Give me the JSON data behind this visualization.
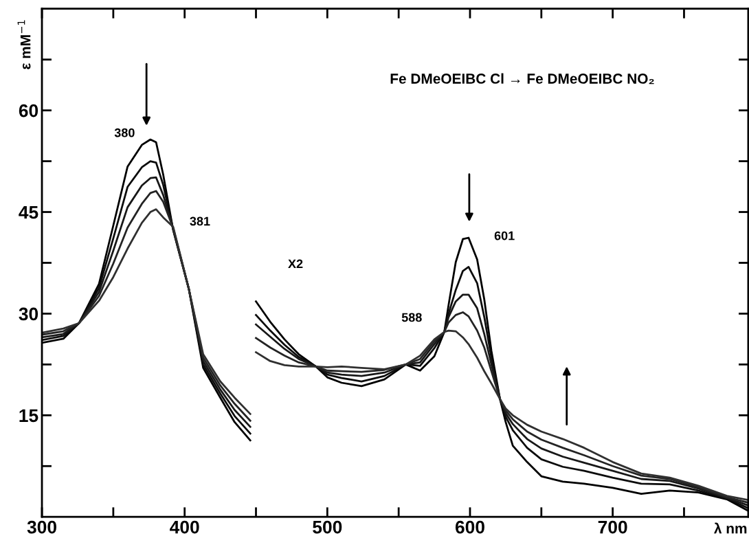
{
  "chart_data": {
    "type": "line",
    "title": "Fe DMeOEIBC Cl → Fe DMeOEIBC NO₂",
    "xlabel": "λ nm",
    "ylabel": "ε mM$^{−1}$",
    "x": [
      300,
      315,
      326,
      340,
      350,
      360,
      370,
      376,
      380,
      385,
      392,
      403,
      413,
      425,
      435,
      446,
      448,
      450,
      460,
      470,
      480,
      492,
      500,
      510,
      524,
      540,
      555,
      565,
      575,
      582,
      585,
      590,
      595,
      599,
      605,
      610,
      615,
      621,
      625,
      630,
      640,
      650,
      665,
      680,
      700,
      720,
      740,
      760,
      780,
      795
    ],
    "series": [
      {
        "color": "#000000",
        "values": [
          25.7,
          26.3,
          28.6,
          34.4,
          43,
          51.7,
          54.9,
          55.7,
          55.3,
          50.5,
          42.3,
          33.6,
          22,
          17.6,
          14,
          11.3,
          null,
          31.8,
          28.8,
          26.2,
          24,
          22.2,
          20.6,
          19.8,
          19.3,
          20.3,
          22.5,
          21.6,
          23.7,
          27.3,
          31.3,
          37.6,
          41,
          41.2,
          38,
          32.1,
          24.5,
          17.4,
          14,
          10.5,
          8.1,
          6,
          5.2,
          4.9,
          4.3,
          3.4,
          3.9,
          3.6,
          2.6,
          0.9
        ]
      },
      {
        "color": "#0c0c0c",
        "values": [
          26.1,
          26.7,
          28.6,
          33.8,
          41.1,
          48.7,
          51.6,
          52.5,
          52.3,
          49,
          42.4,
          33.6,
          22.5,
          18.2,
          14.9,
          12.3,
          null,
          29.8,
          27.5,
          25.4,
          23.6,
          22.2,
          21,
          20.5,
          20,
          20.8,
          22.5,
          22.3,
          24.9,
          27.3,
          30,
          33.5,
          36.3,
          36.9,
          34.5,
          29.5,
          23.5,
          17.4,
          14.8,
          12.8,
          10.2,
          8.5,
          7.4,
          6.8,
          5.8,
          4.9,
          4.8,
          3.9,
          2.7,
          1.3
        ]
      },
      {
        "color": "#181818",
        "values": [
          26.5,
          27,
          28.6,
          33.2,
          39.3,
          45.7,
          48.9,
          50,
          50.1,
          47.5,
          42.5,
          33.6,
          23,
          18.8,
          15.8,
          13.3,
          null,
          28.4,
          26.6,
          24.8,
          23.3,
          22.2,
          21.3,
          21,
          20.8,
          21.3,
          22.5,
          22.8,
          25.5,
          27.3,
          29.5,
          31.8,
          32.8,
          32.8,
          30.8,
          27,
          22.5,
          17.4,
          15.3,
          13.7,
          11.5,
          10.1,
          8.9,
          8,
          6.8,
          5.6,
          5.3,
          4.2,
          2.8,
          1.7
        ]
      },
      {
        "color": "#242424",
        "values": [
          26.9,
          27.4,
          28.6,
          32.6,
          37.4,
          42.7,
          46.2,
          47.8,
          48.1,
          46.5,
          42.6,
          33.6,
          23.5,
          19.4,
          16.7,
          14.2,
          null,
          26.4,
          25,
          23.8,
          22.8,
          22.2,
          21.6,
          21.5,
          21.4,
          21.7,
          22.5,
          23.3,
          25.9,
          27.3,
          28.7,
          29.8,
          30.2,
          29.6,
          27.5,
          25,
          21.5,
          17.4,
          15.7,
          14.4,
          12.6,
          11.4,
          10.2,
          9.1,
          7.5,
          6.1,
          5.6,
          4.4,
          2.9,
          2.1
        ]
      },
      {
        "color": "#303030",
        "values": [
          27.2,
          27.8,
          28.6,
          31.9,
          35.4,
          39.6,
          43.4,
          45,
          45.4,
          44.2,
          42.8,
          33.6,
          24,
          20,
          17.6,
          15.2,
          null,
          24.3,
          23,
          22.4,
          22.2,
          22.2,
          22.1,
          22.2,
          22,
          21.8,
          22.5,
          23.8,
          26.2,
          27.3,
          27.5,
          27.4,
          26.5,
          25.5,
          23.5,
          21.5,
          19.7,
          17.4,
          16,
          15,
          13.6,
          12.6,
          11.5,
          10.2,
          8.1,
          6.4,
          5.8,
          4.6,
          3.1,
          2.5
        ]
      }
    ],
    "xlim": [
      300,
      795
    ],
    "xticks": [
      300,
      {
        "value": 350,
        "label": null
      },
      400,
      {
        "value": 450,
        "label": null
      },
      500,
      {
        "value": 550,
        "label": null
      },
      600,
      {
        "value": 650,
        "label": null
      },
      700,
      {
        "value": 750,
        "label": null
      }
    ],
    "ylim": [
      0,
      75
    ],
    "yticks": [
      {
        "value": 7.5,
        "label": null
      },
      15,
      {
        "value": 22.5,
        "label": null
      },
      30,
      {
        "value": 37.5,
        "label": null
      },
      45,
      {
        "value": 52.5,
        "label": null
      },
      60,
      {
        "value": 67.5,
        "label": null
      }
    ],
    "annotations": [
      {
        "text": "380",
        "x": 376,
        "y": 55.7
      },
      {
        "text": "381",
        "x": 392,
        "y": 42.5
      },
      "X2",
      {
        "text": "588",
        "x": 587.3,
        "y": 27.6
      },
      {
        "text": "601",
        "x": 599.4,
        "y": 41.2
      }
    ],
    "grid": false,
    "legend": false,
    "marker": "none",
    "line_style": "solid"
  }
}
